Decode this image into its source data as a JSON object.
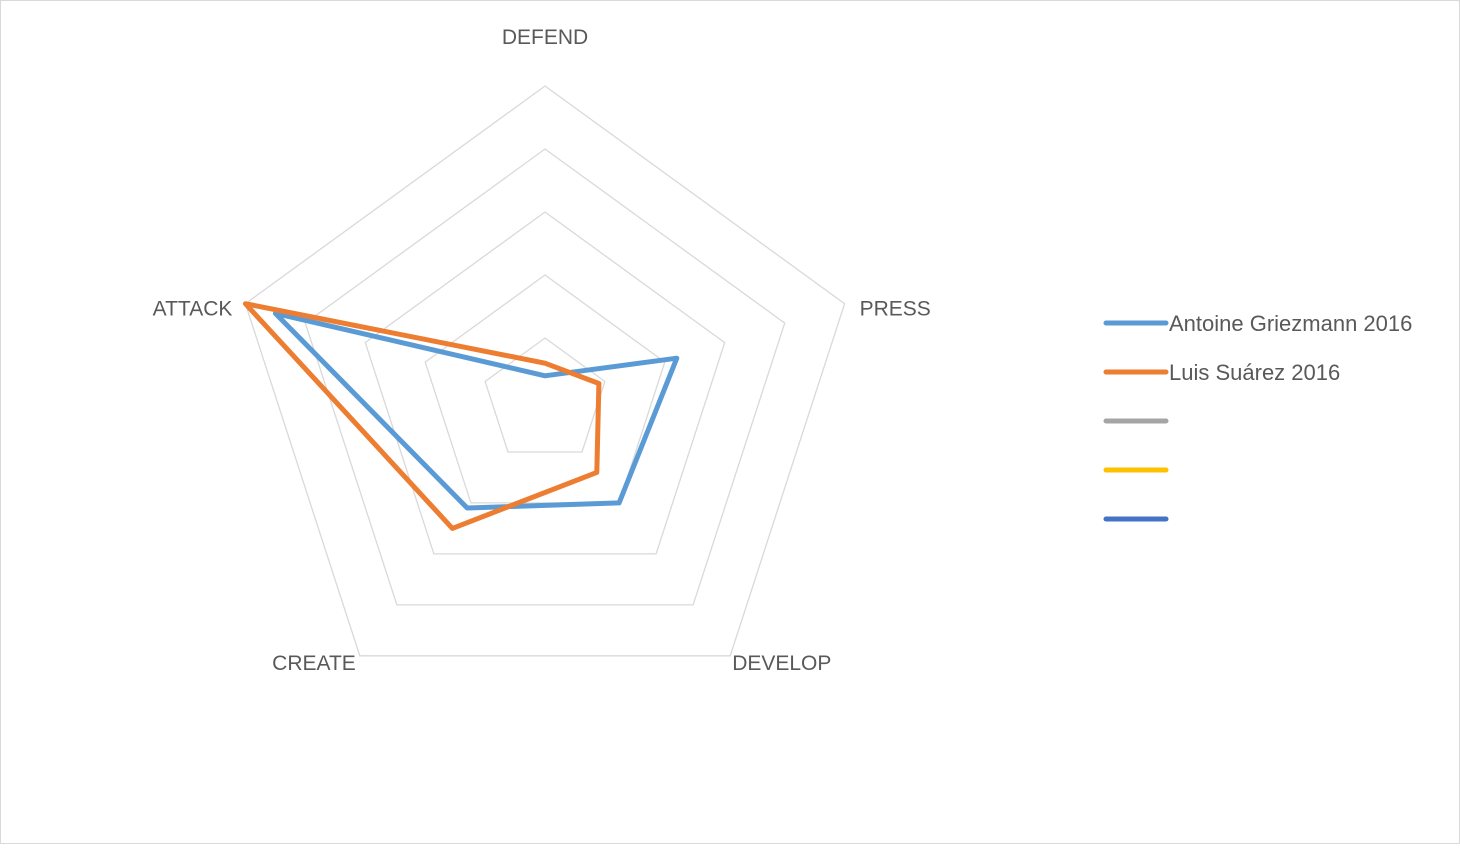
{
  "chart_data": {
    "type": "radar",
    "title": "",
    "axes": [
      "DEFEND",
      "PRESS",
      "DEVELOP",
      "CREATE",
      "ATTACK"
    ],
    "rlim": [
      0,
      5
    ],
    "gridlines": [
      1,
      2,
      3,
      4,
      5
    ],
    "grid": true,
    "legend_position": "right",
    "series": [
      {
        "name": "Antoine Griezmann 2016",
        "color": "#5b9bd5",
        "values": [
          0.4,
          2.2,
          2.0,
          2.1,
          4.5
        ]
      },
      {
        "name": "Luis Suárez 2016",
        "color": "#ed7d31",
        "values": [
          0.6,
          0.9,
          1.4,
          2.5,
          5.0
        ]
      },
      {
        "name": "",
        "color": "#a5a5a5",
        "values": []
      },
      {
        "name": "",
        "color": "#ffc000",
        "values": []
      },
      {
        "name": "",
        "color": "#4472c4",
        "values": []
      }
    ],
    "gridline_color": "#d9d9d9",
    "label_color": "#595959"
  }
}
